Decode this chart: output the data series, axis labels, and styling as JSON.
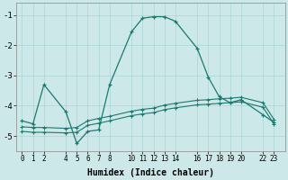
{
  "xlabel": "Humidex (Indice chaleur)",
  "bg_color": "#cce8e8",
  "grid_color": "#aad4d4",
  "line_color": "#1a7a6e",
  "xticks": [
    0,
    1,
    2,
    4,
    5,
    6,
    7,
    8,
    10,
    11,
    12,
    13,
    14,
    16,
    17,
    18,
    19,
    20,
    22,
    23
  ],
  "xlim": [
    -0.5,
    24.0
  ],
  "ylim": [
    -5.5,
    -0.6
  ],
  "yticks": [
    -1,
    -2,
    -3,
    -4,
    -5
  ],
  "curve1_x": [
    0,
    1,
    2,
    4,
    5,
    6,
    7,
    8,
    10,
    11,
    12,
    13,
    14,
    16,
    17,
    18,
    19,
    20,
    22,
    23
  ],
  "curve1_y": [
    -4.5,
    -4.6,
    -3.3,
    -4.2,
    -5.25,
    -4.85,
    -4.8,
    -3.3,
    -1.55,
    -1.1,
    -1.05,
    -1.05,
    -1.2,
    -2.1,
    -3.05,
    -3.7,
    -3.9,
    -3.8,
    -4.3,
    -4.55
  ],
  "curve2_x": [
    0,
    1,
    2,
    4,
    5,
    6,
    7,
    8,
    10,
    11,
    12,
    13,
    14,
    16,
    17,
    18,
    19,
    20,
    22,
    23
  ],
  "curve2_y": [
    -4.7,
    -4.72,
    -4.72,
    -4.75,
    -4.72,
    -4.5,
    -4.42,
    -4.35,
    -4.18,
    -4.12,
    -4.08,
    -3.98,
    -3.92,
    -3.82,
    -3.8,
    -3.77,
    -3.75,
    -3.72,
    -3.9,
    -4.45
  ],
  "curve3_x": [
    0,
    1,
    2,
    4,
    5,
    6,
    7,
    8,
    10,
    11,
    12,
    13,
    14,
    16,
    17,
    18,
    19,
    20,
    22,
    23
  ],
  "curve3_y": [
    -4.85,
    -4.88,
    -4.88,
    -4.9,
    -4.88,
    -4.65,
    -4.58,
    -4.5,
    -4.33,
    -4.27,
    -4.23,
    -4.13,
    -4.07,
    -3.97,
    -3.95,
    -3.92,
    -3.9,
    -3.87,
    -4.05,
    -4.6
  ]
}
